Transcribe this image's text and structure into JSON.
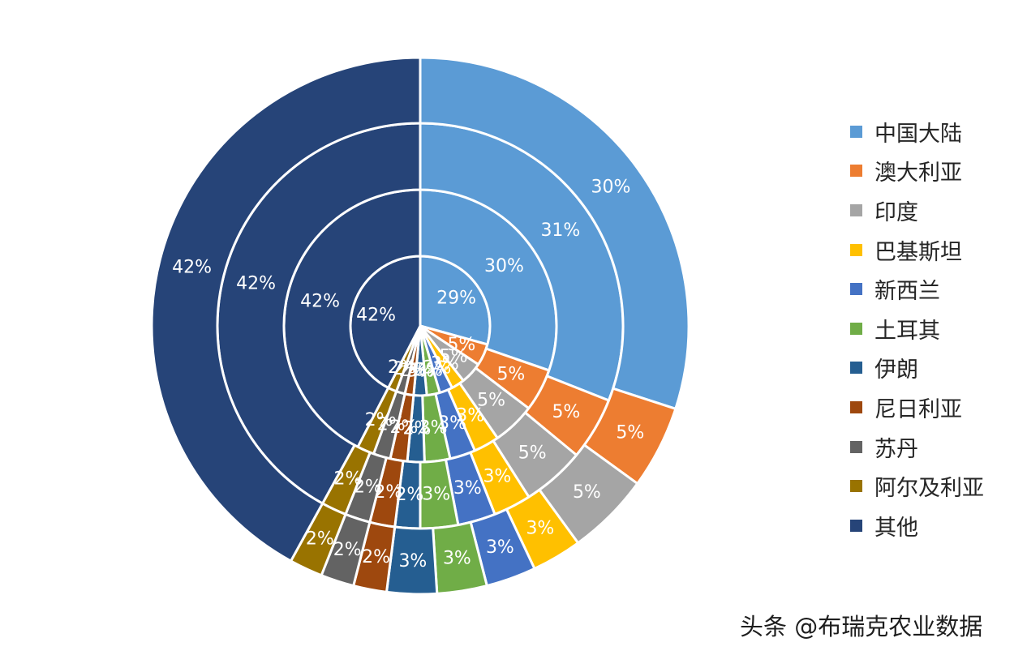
{
  "chart_data": {
    "type": "pie",
    "variant": "multi-ring-donut",
    "start_angle": "12 o'clock",
    "direction": "clockwise",
    "legend_position": "right",
    "categories": [
      "中国大陆",
      "澳大利亚",
      "印度",
      "巴基斯坦",
      "新西兰",
      "土耳其",
      "伊朗",
      "尼日利亚",
      "苏丹",
      "阿尔及利亚",
      "其他"
    ],
    "colors": [
      "#5b9bd5",
      "#ed7d31",
      "#a5a5a5",
      "#ffc000",
      "#4472c4",
      "#70ad47",
      "#255e91",
      "#9e480e",
      "#636363",
      "#997300",
      "#264478"
    ],
    "rings": [
      {
        "values": [
          29,
          5,
          5,
          3,
          3,
          3,
          3,
          2,
          2,
          2,
          42
        ],
        "labels": [
          "29%",
          "5%",
          "5%",
          "3%",
          "3%",
          "3%",
          "3%",
          "2%",
          "2%",
          "2%",
          "42%"
        ]
      },
      {
        "values": [
          30,
          5,
          5,
          3,
          3,
          3,
          2,
          2,
          2,
          2,
          42
        ],
        "labels": [
          "30%",
          "5%",
          "5%",
          "3%",
          "3%",
          "3%",
          "2%",
          "2%",
          "2%",
          "2%",
          "42%"
        ]
      },
      {
        "values": [
          31,
          5,
          5,
          3,
          3,
          3,
          2,
          2,
          2,
          2,
          42
        ],
        "labels": [
          "31%",
          "5%",
          "5%",
          "3%",
          "3%",
          "3%",
          "2%",
          "2%",
          "2%",
          "2%",
          "42%"
        ]
      },
      {
        "values": [
          30,
          5,
          5,
          3,
          3,
          3,
          3,
          2,
          2,
          2,
          42
        ],
        "labels": [
          "30%",
          "5%",
          "5%",
          "3%",
          "3%",
          "3%",
          "3%",
          "2%",
          "2%",
          "2%",
          "42%"
        ]
      }
    ]
  },
  "watermark": "头条 @布瑞克农业数据"
}
